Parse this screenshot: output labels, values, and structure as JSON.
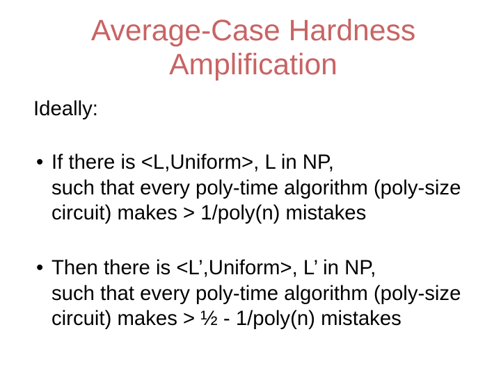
{
  "slide": {
    "title_line1": "Average-Case Hardness",
    "title_line2": "Amplification",
    "intro": "Ideally:",
    "bullet1": "If there is <L,Uniform>, L in NP,\nsuch that every poly-time algorithm (poly-size circuit) makes > 1/poly(n) mistakes",
    "bullet2": "Then there is <L’,Uniform>, L’ in NP,\nsuch that every poly-time algorithm (poly-size circuit) makes > ½ - 1/poly(n) mistakes"
  },
  "style": {
    "title_color": "#c86464",
    "title_fontsize_pt": 32,
    "body_color": "#000000",
    "body_fontsize_pt": 22,
    "background_color": "#ffffff",
    "font_family": "Trebuchet MS"
  }
}
